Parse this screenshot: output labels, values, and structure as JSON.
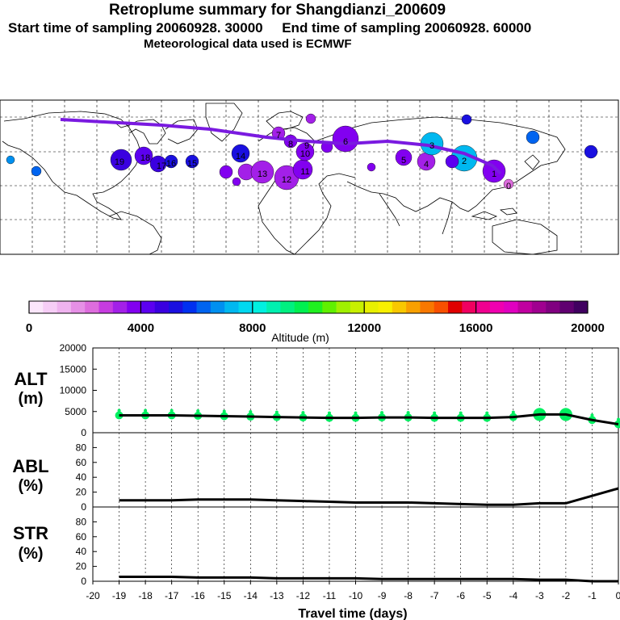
{
  "header": {
    "title": "Retroplume summary for Shangdianzi_200609",
    "line2": "Start time of sampling 20060928. 30000     End time of sampling 20060928. 60000",
    "line3": "Meteorological data used is ECMWF"
  },
  "colorbar": {
    "label": "Altitude (m)",
    "ticks": [
      "0",
      "4000",
      "8000",
      "12000",
      "16000",
      "20000"
    ],
    "colors": [
      "#fbe6fb",
      "#f6cdf6",
      "#efb3ef",
      "#e690e6",
      "#dd6ddd",
      "#c73ce0",
      "#a320e8",
      "#8200f0",
      "#5c00f0",
      "#3a00e0",
      "#1a10e0",
      "#0030f0",
      "#0064f0",
      "#0090f0",
      "#00b8f0",
      "#00d8f0",
      "#00f0e0",
      "#00f0b0",
      "#00f080",
      "#00f050",
      "#20f020",
      "#60f000",
      "#a0f000",
      "#c8f000",
      "#e8f000",
      "#f8f000",
      "#f8c800",
      "#f8a000",
      "#f87800",
      "#f85000",
      "#e00000",
      "#f00060",
      "#f00090",
      "#f000b0",
      "#e000c0",
      "#c000a0",
      "#a00090",
      "#800080",
      "#600070",
      "#400060"
    ]
  },
  "map": {
    "plume_color": "#7a1ae0",
    "labels": [
      "19",
      "18",
      "17",
      "16",
      "15",
      "14",
      "13",
      "12",
      "11",
      "10",
      "9",
      "8",
      "7",
      "6",
      "5",
      "4",
      "3",
      "2",
      "1",
      "0"
    ]
  },
  "panels": {
    "alt": {
      "label1": "ALT",
      "label2": "(m)"
    },
    "abl": {
      "label1": "ABL",
      "label2": "(%)"
    },
    "str": {
      "label1": "STR",
      "label2": "(%)"
    },
    "xlabel": "Travel time (days)"
  },
  "chart_data": [
    {
      "type": "line",
      "name": "ALT",
      "title": "",
      "xlabel": "Travel time (days)",
      "ylabel": "ALT (m)",
      "x": [
        -19,
        -18,
        -17,
        -16,
        -15,
        -14,
        -13,
        -12,
        -11,
        -10,
        -9,
        -8,
        -7,
        -6,
        -5,
        -4,
        -3,
        -2,
        -1,
        0
      ],
      "series": [
        {
          "name": "mean altitude",
          "values": [
            4100,
            4100,
            4100,
            4000,
            3900,
            3800,
            3700,
            3600,
            3500,
            3500,
            3600,
            3600,
            3500,
            3500,
            3500,
            3700,
            4300,
            4300,
            3000,
            2000
          ]
        }
      ],
      "xlim": [
        -20,
        0
      ],
      "ylim": [
        0,
        20000
      ],
      "yticks": [
        0,
        5000,
        10000,
        15000,
        20000
      ],
      "scatter_color": "#00f060"
    },
    {
      "type": "line",
      "name": "ABL",
      "ylabel": "ABL (%)",
      "x": [
        -19,
        -18,
        -17,
        -16,
        -15,
        -14,
        -13,
        -12,
        -11,
        -10,
        -9,
        -8,
        -7,
        -6,
        -5,
        -4,
        -3,
        -2,
        -1,
        0
      ],
      "series": [
        {
          "name": "ABL fraction",
          "values": [
            9,
            9,
            9,
            10,
            10,
            10,
            9,
            8,
            7,
            6,
            6,
            6,
            5,
            4,
            3,
            3,
            5,
            5,
            15,
            25
          ]
        }
      ],
      "xlim": [
        -20,
        0
      ],
      "ylim": [
        0,
        100
      ],
      "yticks": [
        0,
        20,
        40,
        60,
        80
      ]
    },
    {
      "type": "line",
      "name": "STR",
      "ylabel": "STR (%)",
      "x": [
        -19,
        -18,
        -17,
        -16,
        -15,
        -14,
        -13,
        -12,
        -11,
        -10,
        -9,
        -8,
        -7,
        -6,
        -5,
        -4,
        -3,
        -2,
        -1,
        0
      ],
      "series": [
        {
          "name": "STR fraction",
          "values": [
            6,
            6,
            6,
            5,
            5,
            5,
            4,
            4,
            4,
            4,
            3,
            3,
            3,
            3,
            3,
            3,
            2,
            2,
            0,
            0
          ]
        }
      ],
      "xlim": [
        -20,
        0
      ],
      "ylim": [
        0,
        100
      ],
      "yticks": [
        0,
        20,
        40,
        60,
        80
      ],
      "xticks": [
        "-20",
        "-19",
        "-18",
        "-17",
        "-16",
        "-15",
        "-14",
        "-13",
        "-12",
        "-11",
        "-10",
        "-9",
        "-8",
        "-7",
        "-6",
        "-5",
        "-4",
        "-3",
        "-2",
        "-1",
        "0"
      ]
    }
  ]
}
